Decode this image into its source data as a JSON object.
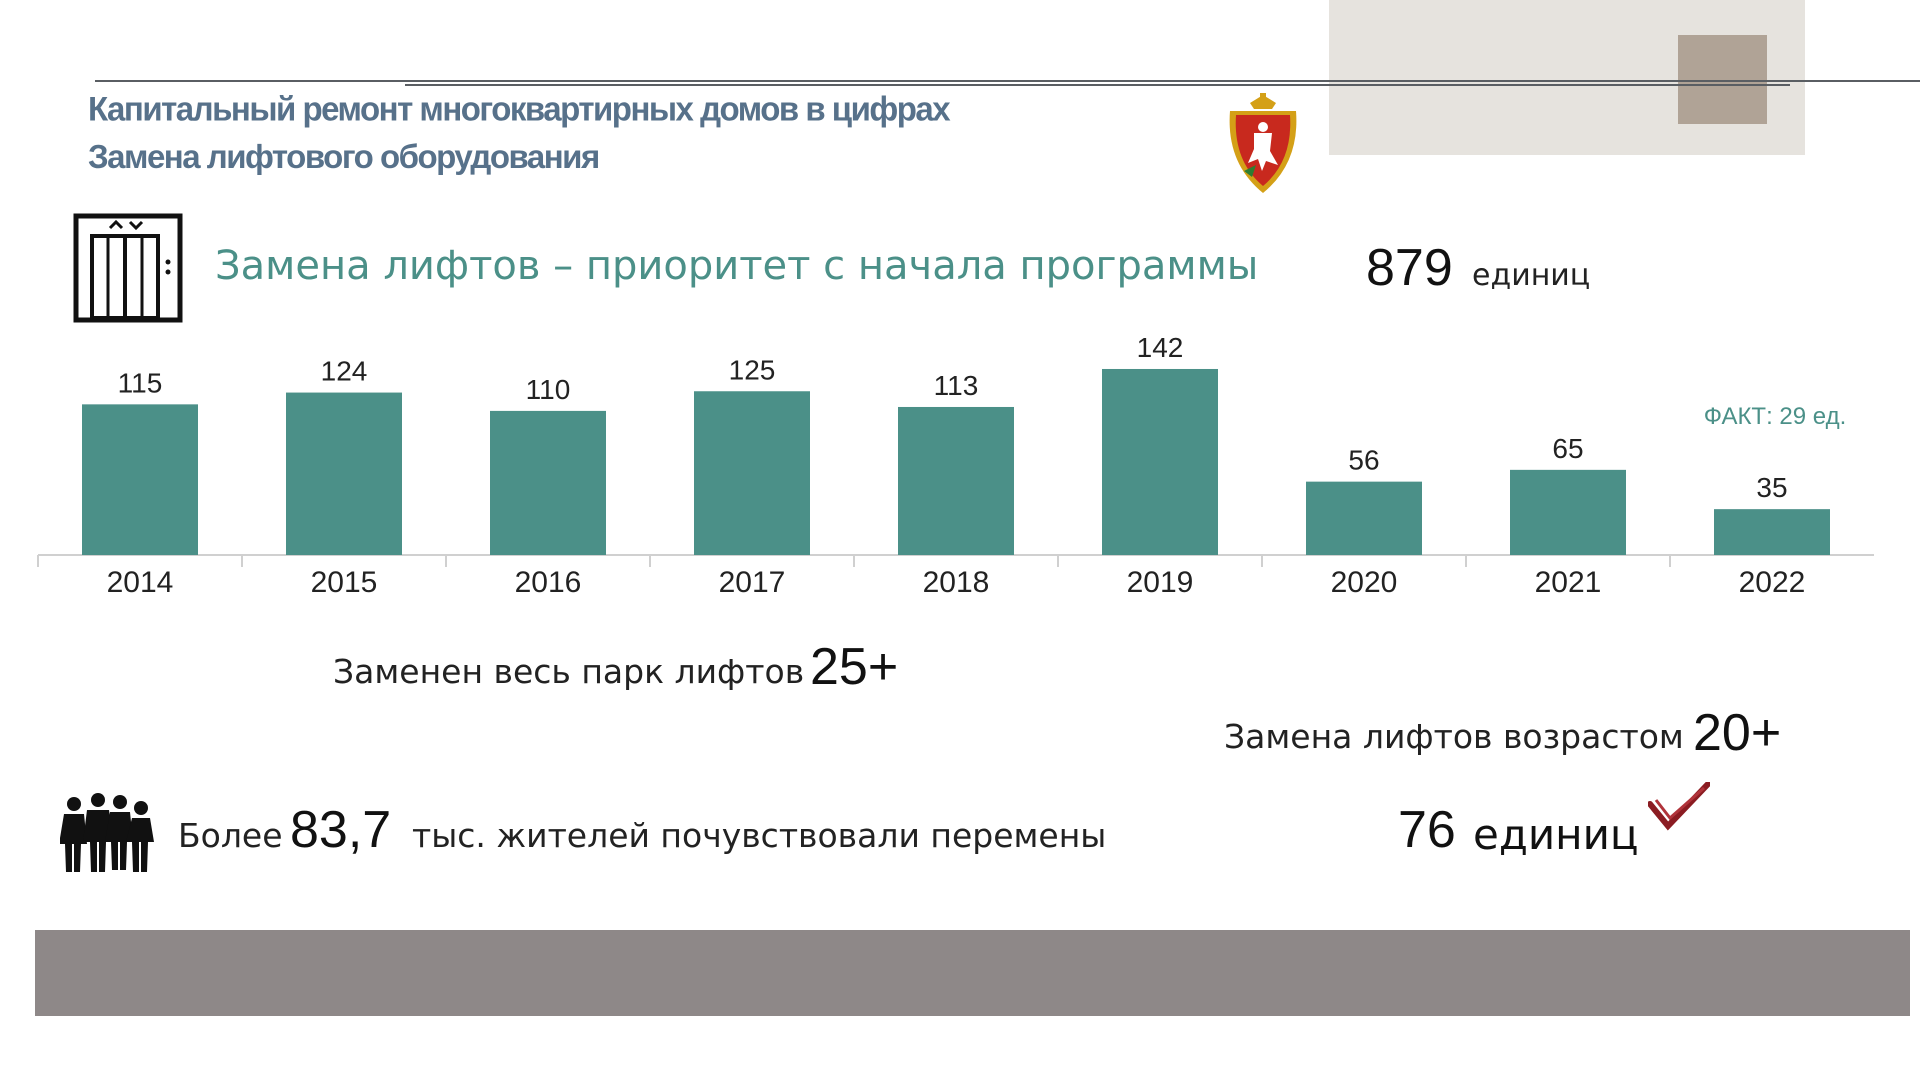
{
  "header": {
    "title": "Капитальный ремонт многоквартирных домов в цифрах",
    "subtitle": "Замена лифтового оборудования"
  },
  "priority": {
    "text": "Замена лифтов – приоритет с начала программы",
    "total_value": "879",
    "total_unit": "единиц"
  },
  "chart_data": {
    "type": "bar",
    "categories": [
      "2014",
      "2015",
      "2016",
      "2017",
      "2018",
      "2019",
      "2020",
      "2021",
      "2022"
    ],
    "values": [
      115,
      124,
      110,
      125,
      113,
      142,
      56,
      65,
      35
    ],
    "title": "",
    "xlabel": "",
    "ylabel": "",
    "bar_color": "#4b9088",
    "grid": false,
    "annotations": [
      {
        "category": "2022",
        "text": "ФАКТ: 29 ед."
      }
    ]
  },
  "stats": {
    "park_text": "Заменен весь парк лифтов",
    "park_value": "25+",
    "age_text": "Замена лифтов возрастом",
    "age_value": "20+",
    "residents_prefix": "Более",
    "residents_value": "83,7",
    "residents_suffix": "тыс. жителей почувствовали перемены",
    "units_value": "76",
    "units_unit": "единиц"
  },
  "icons": {
    "elevator": "elevator-icon",
    "people": "people-icon",
    "check": "check-icon",
    "emblem": "coat-of-arms-icon"
  },
  "colors": {
    "accent": "#4b9088",
    "header": "#57718a",
    "footer": "#8e8888",
    "deco_box": "#e6e3de",
    "deco_square": "#b0a396"
  }
}
